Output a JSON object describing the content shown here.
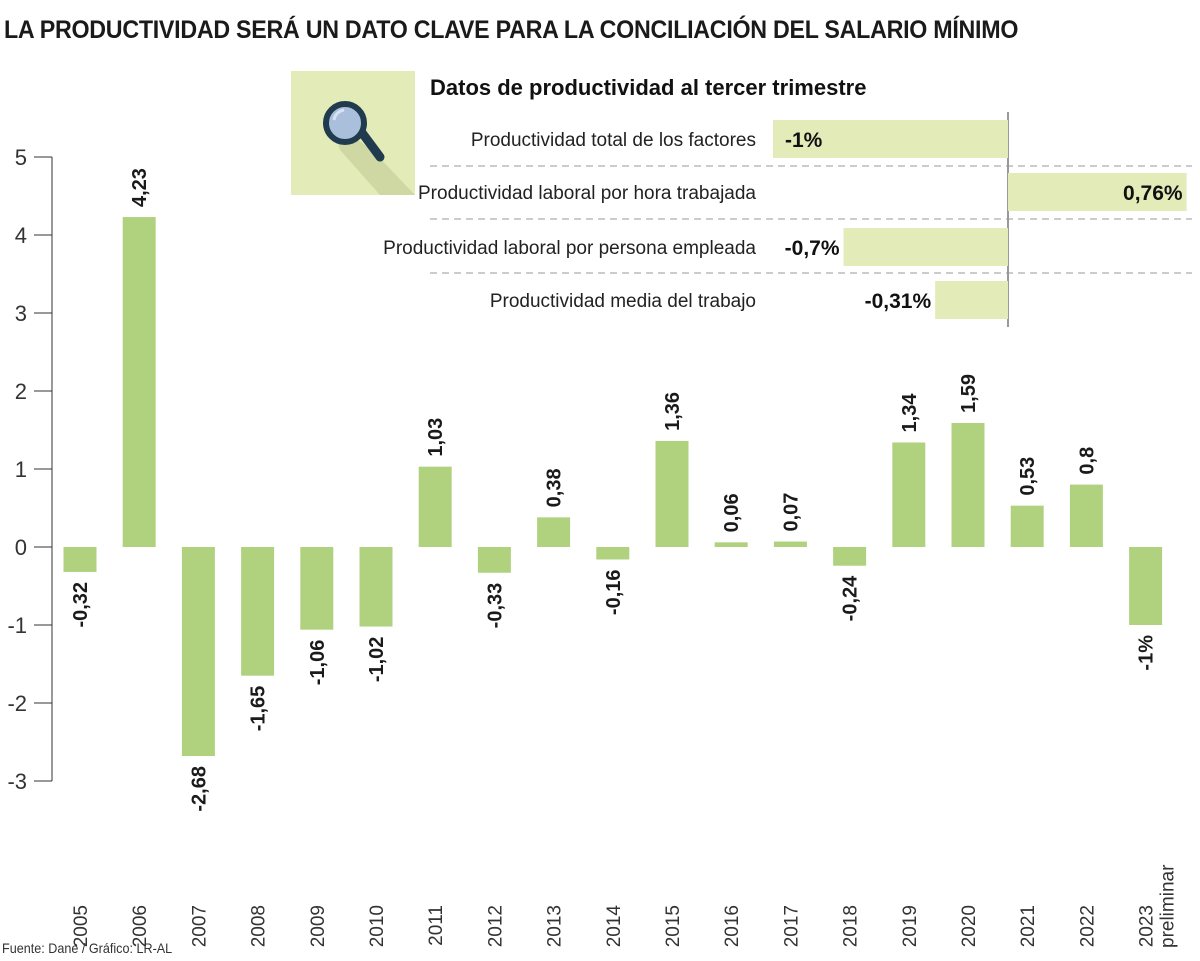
{
  "title": "LA PRODUCTIVIDAD SERÁ UN DATO CLAVE PARA LA CONCILIACIÓN DEL SALARIO MÍNIMO",
  "source": "Fuente: Dane / Gráfico: LR-AL",
  "colors": {
    "bar": "#b0d27f",
    "inset_bar": "#e3ebb8",
    "icon_bg": "#e3ebb8",
    "icon": "#1f3b4d"
  },
  "chart_data": [
    {
      "type": "bar",
      "categories": [
        "2005",
        "2006",
        "2007",
        "2008",
        "2009",
        "2010",
        "2011",
        "2012",
        "2013",
        "2014",
        "2015",
        "2016",
        "2017",
        "2018",
        "2019",
        "2020",
        "2021",
        "2022",
        "2023"
      ],
      "category_note": "preliminar",
      "values": [
        -0.32,
        4.23,
        -2.68,
        -1.65,
        -1.06,
        -1.02,
        1.03,
        -0.33,
        0.38,
        -0.16,
        1.36,
        0.06,
        0.07,
        -0.24,
        1.34,
        1.59,
        0.53,
        0.8,
        -1
      ],
      "data_labels": [
        "-0,32",
        "4,23",
        "-2,68",
        "-1,65",
        "-1,06",
        "-1,02",
        "1,03",
        "-0,33",
        "0,38",
        "-0,16",
        "1,36",
        "0,06",
        "0,07",
        "-0,24",
        "1,34",
        "1,59",
        "0,53",
        "0,8",
        "-1%"
      ],
      "yticks": [
        "5",
        "4",
        "3",
        "2",
        "1",
        "0",
        "-1",
        "-2",
        "-3"
      ],
      "ytick_values": [
        5,
        4,
        3,
        2,
        1,
        0,
        -1,
        -2,
        -3
      ],
      "ylim": [
        -3,
        5
      ],
      "grid": false
    },
    {
      "type": "bar",
      "orientation": "horizontal",
      "title": "Datos de productividad al tercer trimestre",
      "categories": [
        "Productividad total de los factores",
        "Productividad laboral por hora trabajada",
        "Productividad laboral por persona empleada",
        "Productividad media del trabajo"
      ],
      "values": [
        -1,
        0.76,
        -0.7,
        -0.31
      ],
      "data_labels": [
        "-1%",
        "0,76%",
        "-0,7%",
        "-0,31%"
      ],
      "unit": "%"
    }
  ]
}
